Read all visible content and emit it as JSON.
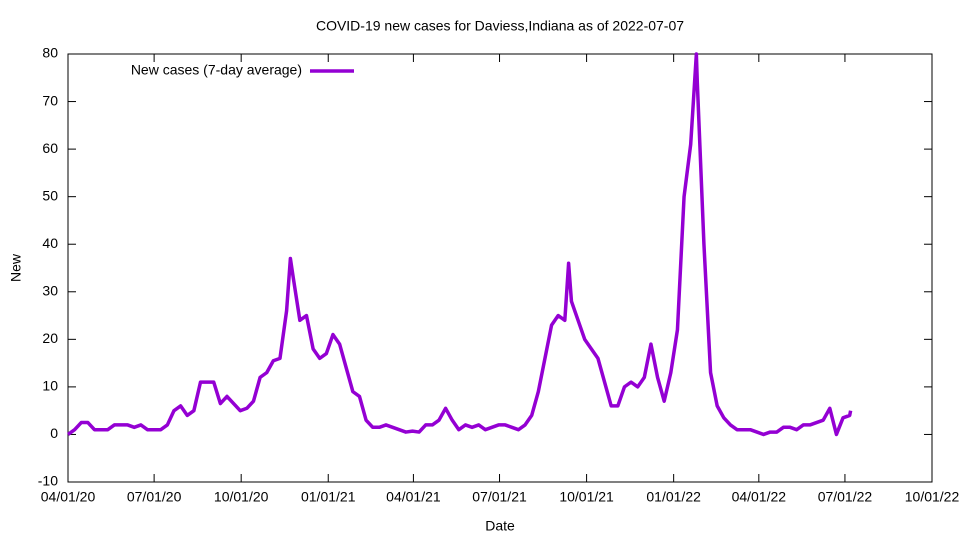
{
  "chart_data": {
    "type": "line",
    "title": "COVID-19 new cases for Daviess,Indiana as of 2022-07-07",
    "x_label": "Date",
    "y_label": "New",
    "x": [
      "2020-04-01",
      "2020-04-08",
      "2020-04-15",
      "2020-04-22",
      "2020-04-29",
      "2020-05-06",
      "2020-05-13",
      "2020-05-20",
      "2020-05-27",
      "2020-06-03",
      "2020-06-10",
      "2020-06-17",
      "2020-06-24",
      "2020-07-01",
      "2020-07-08",
      "2020-07-15",
      "2020-07-22",
      "2020-07-29",
      "2020-08-05",
      "2020-08-12",
      "2020-08-19",
      "2020-08-26",
      "2020-09-02",
      "2020-09-09",
      "2020-09-16",
      "2020-09-23",
      "2020-09-30",
      "2020-10-07",
      "2020-10-14",
      "2020-10-21",
      "2020-10-28",
      "2020-11-04",
      "2020-11-11",
      "2020-11-18",
      "2020-11-22",
      "2020-11-25",
      "2020-12-02",
      "2020-12-09",
      "2020-12-16",
      "2020-12-23",
      "2020-12-30",
      "2021-01-06",
      "2021-01-13",
      "2021-01-20",
      "2021-01-27",
      "2021-02-03",
      "2021-02-10",
      "2021-02-17",
      "2021-02-24",
      "2021-03-03",
      "2021-03-10",
      "2021-03-17",
      "2021-03-24",
      "2021-03-31",
      "2021-04-07",
      "2021-04-14",
      "2021-04-21",
      "2021-04-28",
      "2021-05-05",
      "2021-05-12",
      "2021-05-19",
      "2021-05-26",
      "2021-06-02",
      "2021-06-09",
      "2021-06-16",
      "2021-06-23",
      "2021-06-30",
      "2021-07-07",
      "2021-07-14",
      "2021-07-21",
      "2021-07-28",
      "2021-08-04",
      "2021-08-11",
      "2021-08-18",
      "2021-08-25",
      "2021-09-01",
      "2021-09-08",
      "2021-09-12",
      "2021-09-15",
      "2021-09-22",
      "2021-09-29",
      "2021-10-06",
      "2021-10-13",
      "2021-10-20",
      "2021-10-27",
      "2021-11-03",
      "2021-11-10",
      "2021-11-17",
      "2021-11-24",
      "2021-12-01",
      "2021-12-08",
      "2021-12-15",
      "2021-12-22",
      "2021-12-29",
      "2022-01-05",
      "2022-01-12",
      "2022-01-19",
      "2022-01-25",
      "2022-01-26",
      "2022-02-02",
      "2022-02-09",
      "2022-02-16",
      "2022-02-23",
      "2022-03-02",
      "2022-03-09",
      "2022-03-16",
      "2022-03-23",
      "2022-03-30",
      "2022-04-06",
      "2022-04-13",
      "2022-04-20",
      "2022-04-27",
      "2022-05-04",
      "2022-05-11",
      "2022-05-18",
      "2022-05-25",
      "2022-06-01",
      "2022-06-08",
      "2022-06-15",
      "2022-06-22",
      "2022-06-29",
      "2022-07-06",
      "2022-07-07"
    ],
    "series": [
      {
        "name": "New cases (7-day average)",
        "color": "#9400d3",
        "values": [
          0,
          1,
          2.5,
          2.5,
          1,
          1,
          1,
          2,
          2,
          2,
          1.5,
          2,
          1,
          1,
          1,
          2,
          5,
          6,
          4,
          5,
          11,
          11,
          11,
          6.5,
          8,
          6.5,
          5,
          5.5,
          7,
          12,
          13,
          15.5,
          16,
          26,
          37,
          33,
          24,
          25,
          18,
          16,
          17,
          21,
          19,
          14,
          9,
          8,
          3,
          1.5,
          1.5,
          2,
          1.5,
          1,
          0.5,
          0.7,
          0.5,
          2,
          2,
          3,
          5.5,
          3,
          1,
          2,
          1.5,
          2,
          1,
          1.5,
          2,
          2,
          1.5,
          1,
          2,
          4,
          9,
          16,
          23,
          25,
          24,
          36,
          28,
          24,
          20,
          18,
          16,
          11,
          6,
          6,
          10,
          11,
          10,
          12,
          19,
          12,
          7,
          13,
          22,
          50,
          61,
          80,
          74,
          40,
          13,
          6,
          3.5,
          2,
          1,
          1,
          1,
          0.5,
          0,
          0.5,
          0.5,
          1.5,
          1.5,
          1,
          2,
          2,
          2.5,
          3,
          5.5,
          0,
          3.5,
          4,
          5
        ]
      }
    ],
    "xlim": [
      "2020-04-01",
      "2022-10-01"
    ],
    "xticks": [
      {
        "value": "2020-04-01",
        "label": "04/01/20"
      },
      {
        "value": "2020-07-01",
        "label": "07/01/20"
      },
      {
        "value": "2020-10-01",
        "label": "10/01/20"
      },
      {
        "value": "2021-01-01",
        "label": "01/01/21"
      },
      {
        "value": "2021-04-01",
        "label": "04/01/21"
      },
      {
        "value": "2021-07-01",
        "label": "07/01/21"
      },
      {
        "value": "2021-10-01",
        "label": "10/01/21"
      },
      {
        "value": "2022-01-01",
        "label": "01/01/22"
      },
      {
        "value": "2022-04-01",
        "label": "04/01/22"
      },
      {
        "value": "2022-07-01",
        "label": "07/01/22"
      },
      {
        "value": "2022-10-01",
        "label": "10/01/22"
      }
    ],
    "ylim": [
      -10,
      80
    ],
    "yticks": [
      -10,
      0,
      10,
      20,
      30,
      40,
      50,
      60,
      70,
      80
    ],
    "legend": "top-left"
  }
}
